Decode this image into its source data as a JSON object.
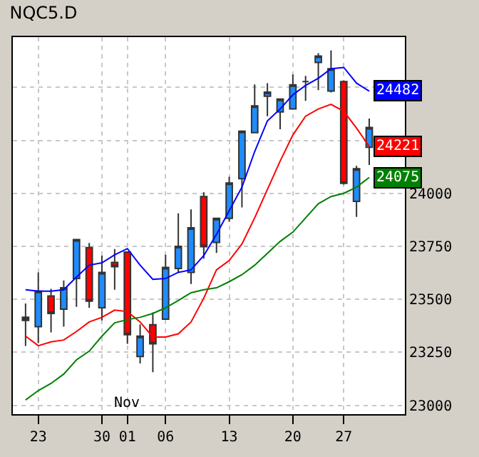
{
  "chart_data": {
    "type": "candlestick",
    "title": "NQC5.D",
    "categories": [
      null,
      "23",
      null,
      null,
      null,
      null,
      "30",
      null,
      "01",
      null,
      null,
      "06",
      null,
      null,
      null,
      null,
      "13",
      null,
      null,
      null,
      null,
      "20",
      null,
      null,
      null,
      "27",
      null,
      null
    ],
    "ohlc": [
      [
        23400,
        23480,
        23280,
        23415
      ],
      [
        23371,
        23627,
        23293,
        23538
      ],
      [
        23516,
        23549,
        23344,
        23433
      ],
      [
        23453,
        23589,
        23371,
        23554
      ],
      [
        23598,
        23782,
        23464,
        23782
      ],
      [
        23744,
        23766,
        23460,
        23491
      ],
      [
        23460,
        23706,
        23400,
        23627
      ],
      [
        23674,
        23737,
        23545,
        23654
      ],
      [
        23723,
        23723,
        23290,
        23333
      ],
      [
        23230,
        23382,
        23197,
        23326
      ],
      [
        23380,
        23438,
        23156,
        23290
      ],
      [
        23406,
        23710,
        23406,
        23650
      ],
      [
        23645,
        23906,
        23627,
        23750
      ],
      [
        23627,
        23924,
        23572,
        23837
      ],
      [
        23985,
        24005,
        23692,
        23748
      ],
      [
        23768,
        23882,
        23719,
        23882
      ],
      [
        23882,
        24078,
        23866,
        24049
      ],
      [
        24069,
        24297,
        23933,
        24293
      ],
      [
        24286,
        24514,
        24286,
        24413
      ],
      [
        24458,
        24520,
        24364,
        24478
      ],
      [
        24384,
        24445,
        24302,
        24445
      ],
      [
        24398,
        24561,
        24398,
        24512
      ],
      [
        24527,
        24554,
        24436,
        24527
      ],
      [
        24617,
        24661,
        24487,
        24648
      ],
      [
        24483,
        24675,
        24476,
        24588
      ],
      [
        24527,
        24532,
        24041,
        24047
      ],
      [
        23962,
        24130,
        23889,
        24116
      ],
      [
        24217,
        24353,
        24134,
        24311
      ]
    ],
    "colors": [
      "#333333",
      "#1e8cff",
      "#ff0000",
      "#1e8cff",
      "#1e8cff",
      "#ff0000",
      "#1e8cff",
      "#ff0000",
      "#ff0000",
      "#1e8cff",
      "#ff0000",
      "#1e8cff",
      "#1e8cff",
      "#1e8cff",
      "#ff0000",
      "#1e8cff",
      "#1e8cff",
      "#1e8cff",
      "#1e8cff",
      "#1e8cff",
      "#1e8cff",
      "#1e8cff",
      "#333333",
      "#1e8cff",
      "#1e8cff",
      "#ff0000",
      "#1e8cff",
      "#1e8cff"
    ],
    "series": [
      {
        "type": "line",
        "color": "#0000ff",
        "values": [
          23545,
          23538,
          23538,
          23545,
          23605,
          23661,
          23672,
          23710,
          23739,
          23661,
          23594,
          23598,
          23627,
          23639,
          23706,
          23806,
          23918,
          24029,
          24197,
          24342,
          24398,
          24465,
          24509,
          24543,
          24588,
          24594,
          24520,
          24482
        ],
        "value_labels": [
          null,
          null,
          null,
          null,
          null,
          null,
          null,
          null,
          null,
          null,
          null,
          null,
          null,
          null,
          null,
          null,
          null,
          null,
          null,
          null,
          null,
          null,
          null,
          null,
          null,
          null,
          null,
          "24482"
        ]
      },
      {
        "type": "line",
        "color": "#ff0000",
        "values": [
          23326,
          23281,
          23299,
          23308,
          23348,
          23393,
          23415,
          23449,
          23442,
          23393,
          23322,
          23322,
          23337,
          23393,
          23505,
          23639,
          23683,
          23761,
          23884,
          24018,
          24152,
          24275,
          24364,
          24398,
          24420,
          24387,
          24308,
          24221
        ],
        "value_labels": [
          null,
          null,
          null,
          null,
          null,
          null,
          null,
          null,
          null,
          null,
          null,
          null,
          null,
          null,
          null,
          null,
          null,
          null,
          null,
          null,
          null,
          null,
          null,
          null,
          null,
          null,
          null,
          "24221"
        ]
      },
      {
        "type": "line",
        "color": "#008000",
        "values": [
          23025,
          23069,
          23103,
          23147,
          23214,
          23255,
          23326,
          23389,
          23404,
          23415,
          23433,
          23460,
          23494,
          23531,
          23545,
          23554,
          23583,
          23616,
          23661,
          23717,
          23773,
          23817,
          23884,
          23951,
          23985,
          24000,
          24029,
          24075
        ],
        "value_labels": [
          null,
          null,
          null,
          null,
          null,
          null,
          null,
          null,
          null,
          null,
          null,
          null,
          null,
          null,
          null,
          null,
          null,
          null,
          null,
          null,
          null,
          null,
          null,
          null,
          null,
          null,
          null,
          "24075"
        ]
      }
    ],
    "ylim": [
      22958,
      24737
    ],
    "yticks": [
      23000,
      23250,
      23500,
      23750,
      24000,
      {
        "value": 24250,
        "label": null
      },
      {
        "value": 24500,
        "label": null
      }
    ],
    "grid": true,
    "annotations": [
      "Nov"
    ]
  }
}
